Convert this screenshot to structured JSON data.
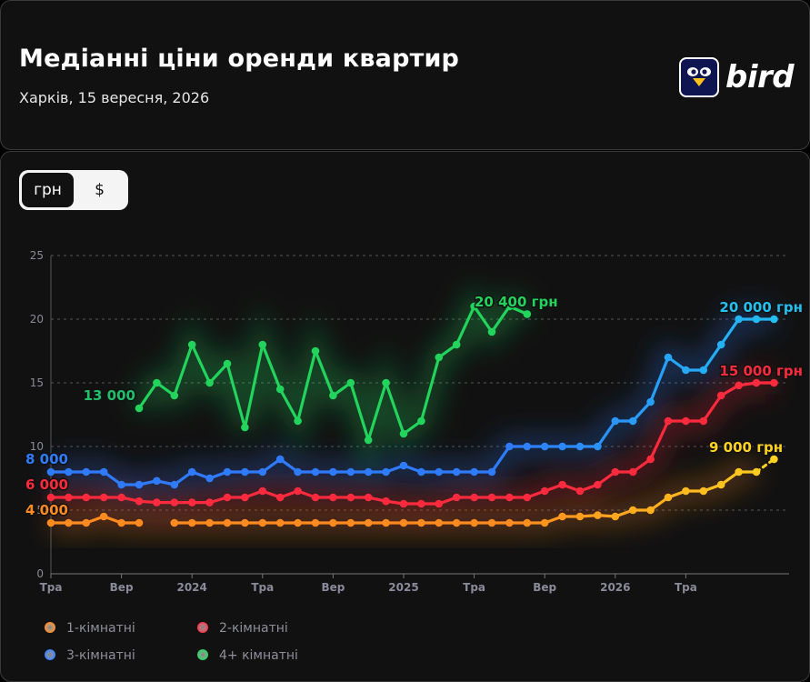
{
  "header": {
    "title": "Медіанні ціни оренди квартир",
    "subtitle": "Харків, 15 вересня, 2026",
    "brand": "bird"
  },
  "toggle": {
    "options": [
      "грн",
      "$"
    ],
    "selected": "грн"
  },
  "colors": {
    "background": "#111111",
    "grid": "#555555",
    "axis_text": "#8a8a9a",
    "one_room": "#ff8a1f",
    "two_room": "#ff2a3d",
    "three_room": "#2f7bff",
    "four_room": "#22d35c",
    "three_room_end": "#22bff0",
    "one_room_end": "#ffd21f"
  },
  "chart_data": {
    "type": "line",
    "unit": "тис. грн",
    "yticks": [
      "0",
      "5",
      "10",
      "15",
      "20",
      "25"
    ],
    "ylim": [
      0,
      25
    ],
    "xticks": [
      "Тра",
      "Вер",
      "2024",
      "Тра",
      "Вер",
      "2025",
      "Тра",
      "Вер",
      "2026",
      "Тра"
    ],
    "xtick_months": [
      0,
      4,
      8,
      12,
      16,
      20,
      24,
      28,
      32,
      36
    ],
    "x_start": "2023-05",
    "x_end": "2026-09",
    "legend_position": "bottom",
    "series": [
      {
        "name": "1-кімнатні",
        "color": "#ff8a1f",
        "end_color": "#ffd21f",
        "months": [
          0,
          1,
          2,
          3,
          4,
          5,
          7,
          8,
          9,
          10,
          11,
          12,
          13,
          14,
          15,
          16,
          17,
          18,
          19,
          20,
          21,
          22,
          23,
          24,
          25,
          26,
          27,
          28,
          29,
          30,
          31,
          32,
          33,
          34,
          35,
          36,
          37,
          38,
          39,
          40
        ],
        "values": [
          4,
          4,
          4,
          4.5,
          4,
          4,
          4,
          4,
          4,
          4,
          4,
          4,
          4,
          4,
          4,
          4,
          4,
          4,
          4,
          4,
          4,
          4,
          4,
          4,
          4,
          4,
          4,
          4,
          4.5,
          4.5,
          4.6,
          4.5,
          5,
          5,
          6,
          6.5,
          6.5,
          7,
          8,
          8
        ],
        "dashed_end_month": 41,
        "dashed_end_value": 9,
        "start_label": "4 000",
        "end_label": "9 000 грн"
      },
      {
        "name": "2-кімнатні",
        "color": "#ff2a3d",
        "end_color": "#ff2a3d",
        "months": [
          0,
          1,
          2,
          3,
          4,
          5,
          6,
          7,
          8,
          9,
          10,
          11,
          12,
          13,
          14,
          15,
          16,
          17,
          18,
          19,
          20,
          21,
          22,
          23,
          24,
          25,
          26,
          27,
          28,
          29,
          30,
          31,
          32,
          33,
          34,
          35,
          36,
          37,
          38,
          39,
          40,
          41
        ],
        "values": [
          6,
          6,
          6,
          6,
          6,
          5.7,
          5.6,
          5.6,
          5.6,
          5.6,
          6,
          6,
          6.5,
          6,
          6.5,
          6,
          6,
          6,
          6,
          5.7,
          5.5,
          5.5,
          5.5,
          6,
          6,
          6,
          6,
          6,
          6.5,
          7,
          6.5,
          7,
          8,
          8,
          9,
          12,
          12,
          12,
          14,
          14.8,
          15,
          15
        ],
        "start_label": "6 000",
        "end_label": "15 000 грн"
      },
      {
        "name": "3-кімнатні",
        "color": "#2f7bff",
        "end_color": "#22bff0",
        "months": [
          0,
          1,
          2,
          3,
          4,
          5,
          6,
          7,
          8,
          9,
          10,
          11,
          12,
          13,
          14,
          15,
          16,
          17,
          18,
          19,
          20,
          21,
          22,
          23,
          24,
          25,
          26,
          27,
          28,
          29,
          30,
          31,
          32,
          33,
          34,
          35,
          36,
          37,
          38,
          39,
          40,
          41
        ],
        "values": [
          8,
          8,
          8,
          8,
          7,
          7,
          7.3,
          7,
          8,
          7.5,
          8,
          8,
          8,
          9,
          8,
          8,
          8,
          8,
          8,
          8,
          8.5,
          8,
          8,
          8,
          8,
          8,
          10,
          10,
          10,
          10,
          10,
          10,
          12,
          12,
          13.5,
          17,
          16,
          16,
          18,
          20,
          20,
          20
        ],
        "start_label": "8 000",
        "end_label": "20 000 грн"
      },
      {
        "name": "4+ кімнатні",
        "color": "#22d35c",
        "end_color": "#22d35c",
        "months": [
          5,
          6,
          7,
          8,
          9,
          10,
          11,
          12,
          13,
          14,
          15,
          16,
          17,
          18,
          19,
          20,
          21,
          22,
          23,
          24,
          25,
          26,
          27
        ],
        "values": [
          13,
          15,
          14,
          18,
          15,
          16.5,
          11.5,
          18,
          14.5,
          12,
          17.5,
          14,
          15,
          10.5,
          15,
          11,
          12,
          17,
          18,
          21,
          19,
          21,
          20.4
        ],
        "start_label": "13 000",
        "end_label": "20 400 грн"
      }
    ]
  }
}
